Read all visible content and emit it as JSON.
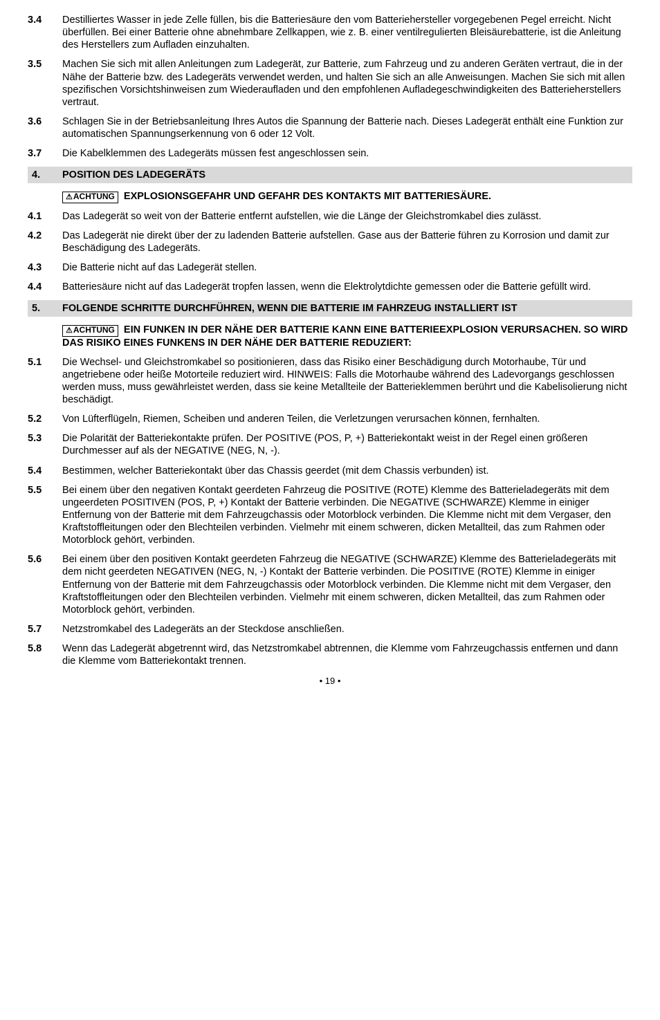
{
  "items": {
    "i34": {
      "num": "3.4",
      "text": "Destilliertes Wasser in jede Zelle füllen, bis die Batteriesäure den vom Batteriehersteller vorgegebenen Pegel erreicht. Nicht überfüllen. Bei einer Batterie ohne abnehmbare Zellkappen, wie z. B. einer ventilregulierten Bleisäurebatterie, ist die Anleitung des Herstellers zum Aufladen einzuhalten."
    },
    "i35": {
      "num": "3.5",
      "text": "Machen Sie sich mit allen Anleitungen zum Ladegerät, zur Batterie, zum Fahrzeug und zu anderen Geräten vertraut, die in der Nähe der Batterie bzw. des Ladegeräts verwendet werden, und halten Sie sich an alle Anweisungen. Machen Sie sich mit allen spezifischen Vorsichtshinweisen zum Wiederaufladen und den empfohlenen Aufladegeschwindigkeiten des Batterieherstellers vertraut."
    },
    "i36": {
      "num": "3.6",
      "text": "Schlagen Sie in der Betriebsanleitung Ihres Autos die Spannung der Batterie nach. Dieses Ladegerät enthält eine Funktion zur automatischen Spannungserkennung von 6 oder 12 Volt."
    },
    "i37": {
      "num": "3.7",
      "text": "Die Kabelklemmen des Ladegeräts müssen fest angeschlossen sein."
    },
    "i41": {
      "num": "4.1",
      "text": "Das Ladegerät so weit von der Batterie entfernt aufstellen, wie die Länge der Gleichstromkabel dies zulässt."
    },
    "i42": {
      "num": "4.2",
      "text": "Das Ladegerät nie direkt über der zu ladenden Batterie aufstellen. Gase aus der Batterie führen zu Korrosion und damit zur Beschädigung des Ladegeräts."
    },
    "i43": {
      "num": "4.3",
      "text": "Die Batterie nicht auf das Ladegerät stellen."
    },
    "i44": {
      "num": "4.4",
      "text": "Batteriesäure nicht auf das Ladegerät tropfen lassen, wenn die Elektrolytdichte gemessen oder die Batterie gefüllt wird."
    },
    "i51": {
      "num": "5.1",
      "text": "Die Wechsel- und Gleichstromkabel so positionieren, dass das Risiko einer Beschädigung durch Motorhaube, Tür und angetriebene oder heiße Motorteile reduziert wird. HINWEIS: Falls die Motorhaube während des Ladevorgangs geschlossen werden muss, muss gewährleistet werden, dass sie keine Metallteile der Batterieklemmen berührt und die Kabelisolierung nicht beschädigt."
    },
    "i52": {
      "num": "5.2",
      "text": "Von Lüfterflügeln, Riemen, Scheiben und anderen Teilen, die Verletzungen verursachen können, fernhalten."
    },
    "i53": {
      "num": "5.3",
      "text": "Die Polarität der Batteriekontakte prüfen. Der POSITIVE (POS, P, +) Batteriekontakt weist in der Regel einen größeren Durchmesser auf als der NEGATIVE (NEG, N, -)."
    },
    "i54": {
      "num": "5.4",
      "text": "Bestimmen, welcher Batteriekontakt über das Chassis geerdet (mit dem Chassis verbunden) ist."
    },
    "i55": {
      "num": "5.5",
      "text": "Bei einem über den negativen Kontakt geerdeten Fahrzeug die POSITIVE (ROTE) Klemme des Batterieladegeräts mit dem ungeerdeten POSITIVEN (POS, P, +) Kontakt der Batterie verbinden. Die NEGATIVE (SCHWARZE) Klemme in einiger Entfernung von der Batterie mit dem Fahrzeugchassis oder Motorblock verbinden. Die Klemme nicht mit dem Vergaser, den Kraftstoffleitungen oder den Blechteilen verbinden. Vielmehr mit einem schweren, dicken Metallteil, das zum Rahmen oder Motorblock gehört, verbinden."
    },
    "i56": {
      "num": "5.6",
      "text": "Bei einem über den positiven Kontakt geerdeten Fahrzeug die NEGATIVE (SCHWARZE) Klemme des Batterieladegeräts mit dem nicht geerdeten NEGATIVEN (NEG, N, -) Kontakt der Batterie verbinden. Die POSITIVE (ROTE) Klemme in einiger Entfernung von der Batterie mit dem Fahrzeugchassis oder Motorblock verbinden. Die Klemme nicht mit dem Vergaser, den Kraftstoffleitungen oder den Blechteilen verbinden. Vielmehr mit einem schweren, dicken Metallteil, das zum Rahmen oder Motorblock gehört, verbinden."
    },
    "i57": {
      "num": "5.7",
      "text": "Netzstromkabel des Ladegeräts an der Steckdose anschließen."
    },
    "i58": {
      "num": "5.8",
      "text": "Wenn das Ladegerät abgetrennt wird, das Netzstromkabel abtrennen, die Klemme vom Fahrzeugchassis entfernen und dann die Klemme vom Batteriekontakt trennen."
    }
  },
  "sections": {
    "s4": {
      "num": "4.",
      "title": "POSITION DES LADEGERÄTS"
    },
    "s5": {
      "num": "5.",
      "title": "FOLGENDE SCHRITTE DURCHFÜHREN, WENN DIE BATTERIE IM FAHRZEUG INSTALLIERT IST"
    }
  },
  "warnings": {
    "w4": {
      "label": "ACHTUNG",
      "text": " EXPLOSIONSGEFAHR UND GEFAHR DES KONTAKTS MIT BATTERIESÄURE."
    },
    "w5": {
      "label": "ACHTUNG",
      "text": " EIN FUNKEN IN DER NÄHE DER BATTERIE KANN EINE BATTERIEEXPLOSION VERURSACHEN. SO WIRD DAS RISIKO EINES FUNKENS IN DER NÄHE DER BATTERIE REDUZIERT:"
    }
  },
  "pagenum": "• 19 •"
}
